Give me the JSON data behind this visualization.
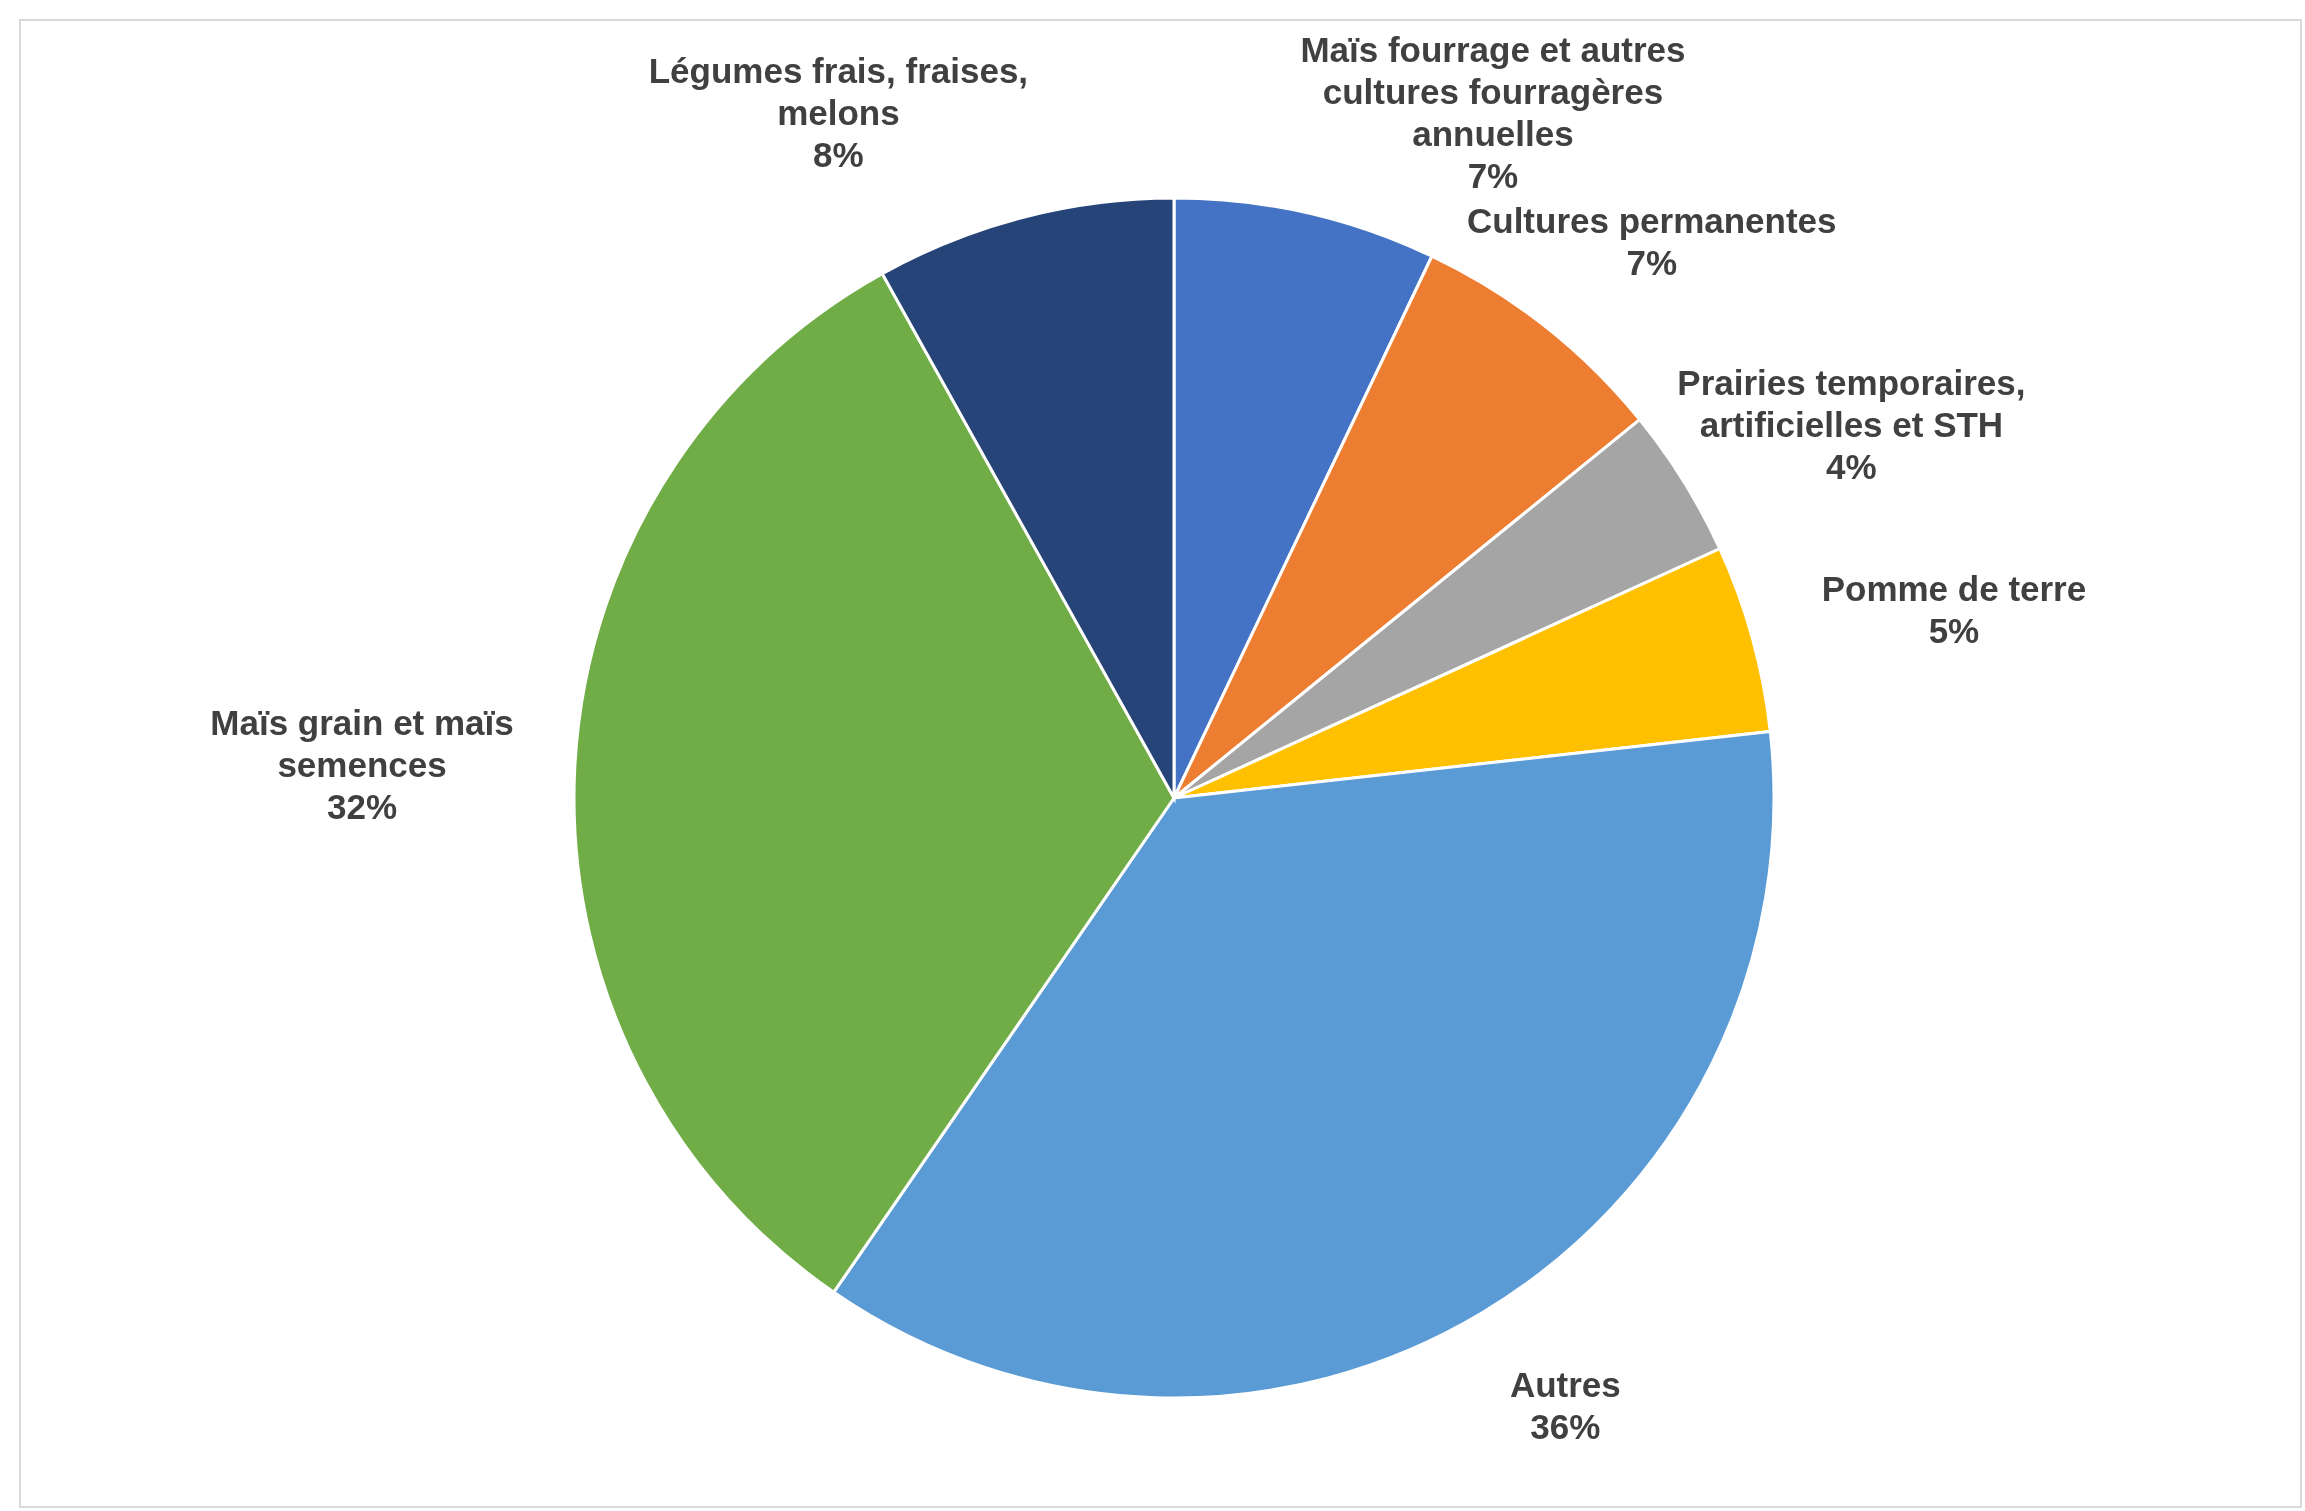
{
  "chart_data": {
    "type": "pie",
    "categories": [
      "Maïs fourrage et autres cultures fourragères annuelles",
      "Cultures permanentes",
      "Prairies temporaires, artificielles et STH",
      "Pomme de terre",
      "Autres",
      "Maïs grain et maïs semences",
      "Légumes frais, fraises, melons"
    ],
    "values": [
      7,
      7,
      4,
      5,
      36,
      32,
      8
    ],
    "value_labels": [
      "7%",
      "7%",
      "4%",
      "5%",
      "36%",
      "32%",
      "8%"
    ],
    "colors": [
      "#4472c4",
      "#ed7d31",
      "#a5a5a5",
      "#ffc000",
      "#5b9bd5",
      "#70ad47",
      "#264478"
    ]
  }
}
